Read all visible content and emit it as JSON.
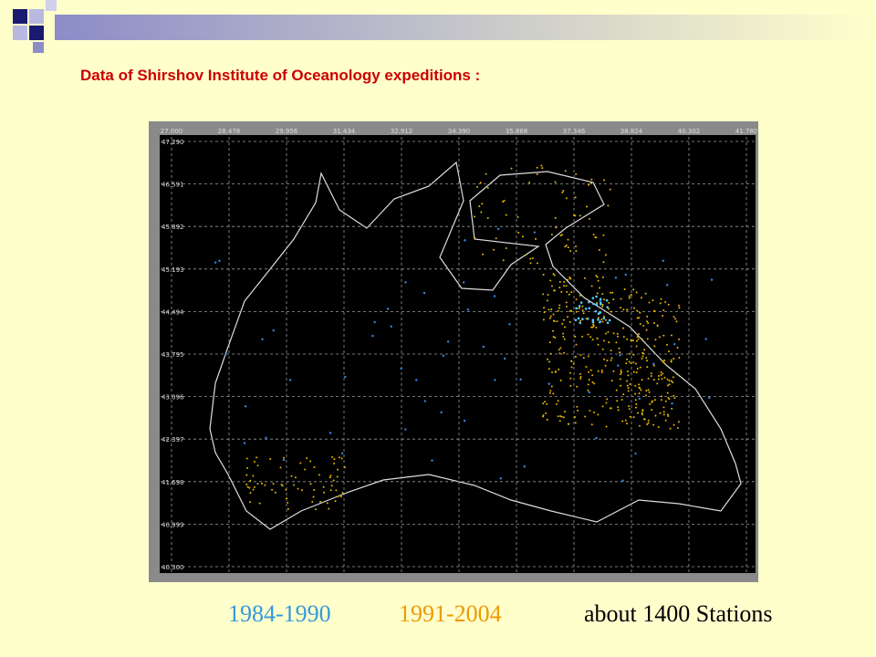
{
  "title": "Data of Shirshov Institute of Oceanology expeditions :",
  "map": {
    "x_ticks": [
      "27.000",
      "28.478",
      "29.956",
      "31.434",
      "32.912",
      "34.390",
      "35.868",
      "37.346",
      "38.824",
      "40.302",
      "41.780"
    ],
    "y_ticks": [
      "47.290",
      "46.591",
      "45.892",
      "45.193",
      "44.494",
      "43.795",
      "43.096",
      "42.397",
      "41.698",
      "40.999",
      "40.300"
    ]
  },
  "legend": {
    "items": [
      "1984-1990",
      "1991-2004"
    ],
    "note": "about 1400 Stations"
  }
}
